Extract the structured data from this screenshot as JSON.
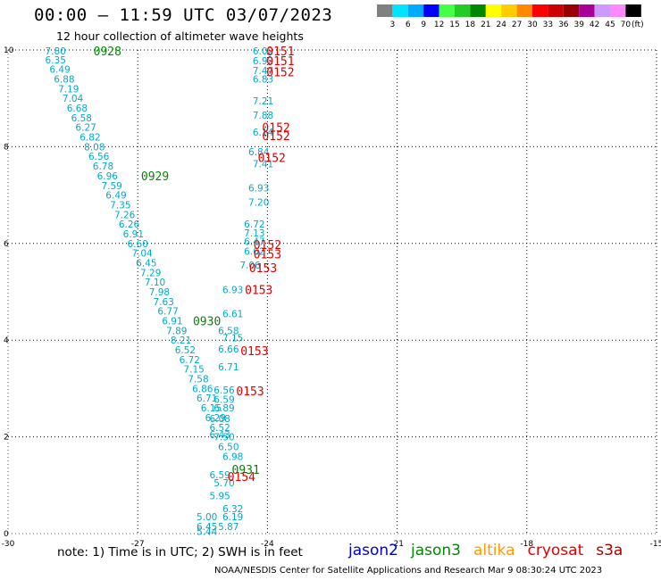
{
  "header": {
    "title": "00:00 – 11:59 UTC 03/07/2023",
    "subtitle": "12 hour collection of altimeter wave heights"
  },
  "legend": {
    "colors": [
      "#808080",
      "#00e5ff",
      "#00aaff",
      "#0000ff",
      "#44ff44",
      "#22cc22",
      "#008800",
      "#ffff00",
      "#ffcc00",
      "#ff8800",
      "#ff0000",
      "#cc0000",
      "#990000",
      "#aa0099",
      "#cc99ff",
      "#ff88ff",
      "#000000"
    ],
    "ticks": [
      "3",
      "6",
      "9",
      "12",
      "15",
      "18",
      "21",
      "24",
      "27",
      "30",
      "33",
      "36",
      "39",
      "42",
      "45",
      "70",
      "(ft)"
    ]
  },
  "footer": {
    "note": "note:  1) Time is in UTC;  2) SWH is in feet",
    "satellites": [
      {
        "name": "jason2",
        "color": "#0000cc"
      },
      {
        "name": "jason3",
        "color": "#008800"
      },
      {
        "name": "altika",
        "color": "#ff9900"
      },
      {
        "name": "cryosat",
        "color": "#dd0000"
      },
      {
        "name": "s3a",
        "color": "#aa0000"
      }
    ],
    "credit": "NOAA/NESDIS Center for Satellite Applications and Research    Mar  9 08:30:24 UTC 2023"
  },
  "chart_data": {
    "type": "scatter",
    "title": "12 hour collection of altimeter wave heights",
    "xlim": [
      -30,
      -15
    ],
    "ylim": [
      0,
      10
    ],
    "xticks": [
      "-30",
      "-27",
      "-24",
      "-21",
      "-18",
      "-15"
    ],
    "yticks": [
      "0",
      "2",
      "4",
      "6",
      "8",
      "10"
    ],
    "grid": true,
    "series": [
      {
        "name": "jason3",
        "color": "#00aacc",
        "points": [
          {
            "x": -28.9,
            "y": 9.98,
            "label": "7.80"
          },
          {
            "x": -28.9,
            "y": 9.8,
            "label": "6.35"
          },
          {
            "x": -28.8,
            "y": 9.6,
            "label": "6.49"
          },
          {
            "x": -28.7,
            "y": 9.4,
            "label": "6.88"
          },
          {
            "x": -28.6,
            "y": 9.2,
            "label": "7.19"
          },
          {
            "x": -28.5,
            "y": 9.0,
            "label": "7.04"
          },
          {
            "x": -28.4,
            "y": 8.8,
            "label": "6.68"
          },
          {
            "x": -28.3,
            "y": 8.6,
            "label": "6.58"
          },
          {
            "x": -28.2,
            "y": 8.4,
            "label": "6.27"
          },
          {
            "x": -28.1,
            "y": 8.2,
            "label": "6.82"
          },
          {
            "x": -28.0,
            "y": 8.0,
            "label": "8.08"
          },
          {
            "x": -27.9,
            "y": 7.8,
            "label": "6.56"
          },
          {
            "x": -27.8,
            "y": 7.6,
            "label": "6.78"
          },
          {
            "x": -27.7,
            "y": 7.4,
            "label": "6.96"
          },
          {
            "x": -27.6,
            "y": 7.2,
            "label": "7.59"
          },
          {
            "x": -27.5,
            "y": 7.0,
            "label": "6.49"
          },
          {
            "x": -27.4,
            "y": 6.8,
            "label": "7.35"
          },
          {
            "x": -27.3,
            "y": 6.6,
            "label": "7.26"
          },
          {
            "x": -27.2,
            "y": 6.4,
            "label": "6.26"
          },
          {
            "x": -27.1,
            "y": 6.2,
            "label": "6.91"
          },
          {
            "x": -27.0,
            "y": 6.0,
            "label": "6.60"
          },
          {
            "x": -26.9,
            "y": 5.8,
            "label": "7.04"
          },
          {
            "x": -26.8,
            "y": 5.6,
            "label": "6.45"
          },
          {
            "x": -26.7,
            "y": 5.4,
            "label": "7.29"
          },
          {
            "x": -26.6,
            "y": 5.2,
            "label": "7.10"
          },
          {
            "x": -26.5,
            "y": 5.0,
            "label": "7.98"
          },
          {
            "x": -26.4,
            "y": 4.8,
            "label": "7.63"
          },
          {
            "x": -26.3,
            "y": 4.6,
            "label": "6.77"
          },
          {
            "x": -26.2,
            "y": 4.4,
            "label": "6.91"
          },
          {
            "x": -26.1,
            "y": 4.2,
            "label": "7.89"
          },
          {
            "x": -26.0,
            "y": 4.0,
            "label": "8.21"
          },
          {
            "x": -25.9,
            "y": 3.8,
            "label": "6.52"
          },
          {
            "x": -25.8,
            "y": 3.6,
            "label": "6.72"
          },
          {
            "x": -25.7,
            "y": 3.4,
            "label": "7.15"
          },
          {
            "x": -25.6,
            "y": 3.2,
            "label": "7.58"
          },
          {
            "x": -25.5,
            "y": 3.0,
            "label": "6.86"
          },
          {
            "x": -25.4,
            "y": 2.8,
            "label": "6.71"
          },
          {
            "x": -25.3,
            "y": 2.6,
            "label": "6.15"
          },
          {
            "x": -25.2,
            "y": 2.4,
            "label": "6.29"
          },
          {
            "x": -25.1,
            "y": 2.2,
            "label": "6.52"
          },
          {
            "x": -25.0,
            "y": 2.0,
            "label": "7.50"
          },
          {
            "x": -24.9,
            "y": 1.8,
            "label": "6.50"
          },
          {
            "x": -24.8,
            "y": 1.6,
            "label": "6.98"
          }
        ]
      },
      {
        "name": "cryosat",
        "color": "#00aacc",
        "points": [
          {
            "x": -24.1,
            "y": 9.98,
            "label": "6.02"
          },
          {
            "x": -24.1,
            "y": 9.78,
            "label": "6.92"
          },
          {
            "x": -24.1,
            "y": 9.58,
            "label": "7.47"
          },
          {
            "x": -24.1,
            "y": 9.4,
            "label": "6.83"
          },
          {
            "x": -24.1,
            "y": 8.95,
            "label": "7.21"
          },
          {
            "x": -24.1,
            "y": 8.65,
            "label": "7.88"
          },
          {
            "x": -24.1,
            "y": 8.3,
            "label": "6.14"
          },
          {
            "x": -24.2,
            "y": 7.9,
            "label": "6.84"
          },
          {
            "x": -24.1,
            "y": 7.65,
            "label": "7.41"
          },
          {
            "x": -24.2,
            "y": 7.15,
            "label": "6.93"
          },
          {
            "x": -24.2,
            "y": 6.85,
            "label": "7.20"
          },
          {
            "x": -24.3,
            "y": 6.4,
            "label": "6.72"
          },
          {
            "x": -24.3,
            "y": 6.22,
            "label": "7.13"
          },
          {
            "x": -24.3,
            "y": 6.04,
            "label": "6.47"
          },
          {
            "x": -24.3,
            "y": 5.84,
            "label": "6.62"
          },
          {
            "x": -24.4,
            "y": 5.55,
            "label": "7.06"
          },
          {
            "x": -24.8,
            "y": 5.05,
            "label": "6.93"
          },
          {
            "x": -24.8,
            "y": 4.55,
            "label": "6.61"
          },
          {
            "x": -24.9,
            "y": 4.2,
            "label": "6.58"
          },
          {
            "x": -24.8,
            "y": 4.05,
            "label": "7.15"
          },
          {
            "x": -24.9,
            "y": 3.82,
            "label": "6.66"
          },
          {
            "x": -24.9,
            "y": 3.45,
            "label": "6.71"
          },
          {
            "x": -25.0,
            "y": 2.97,
            "label": "6.56"
          },
          {
            "x": -25.0,
            "y": 2.78,
            "label": "6.59"
          },
          {
            "x": -25.0,
            "y": 2.6,
            "label": "6.89"
          },
          {
            "x": -25.1,
            "y": 2.38,
            "label": "6.08"
          },
          {
            "x": -25.1,
            "y": 2.05,
            "label": "6.43"
          },
          {
            "x": -25.1,
            "y": 1.22,
            "label": "6.59"
          },
          {
            "x": -25.0,
            "y": 1.05,
            "label": "5.70"
          },
          {
            "x": -25.1,
            "y": 0.78,
            "label": "5.95"
          },
          {
            "x": -24.8,
            "y": 0.52,
            "label": "6.32"
          },
          {
            "x": -25.4,
            "y": 0.35,
            "label": "5.00"
          },
          {
            "x": -24.8,
            "y": 0.35,
            "label": "6.19"
          },
          {
            "x": -25.4,
            "y": 0.15,
            "label": "6.45"
          },
          {
            "x": -24.9,
            "y": 0.15,
            "label": "5.87"
          },
          {
            "x": -25.4,
            "y": 0.05,
            "label": "5.44"
          }
        ]
      }
    ],
    "time_labels": [
      {
        "x": -27.7,
        "y": 9.98,
        "text": "0928",
        "color": "#008800"
      },
      {
        "x": -26.6,
        "y": 7.4,
        "text": "0929",
        "color": "#008800"
      },
      {
        "x": -25.4,
        "y": 4.4,
        "text": "0930",
        "color": "#008800"
      },
      {
        "x": -24.5,
        "y": 1.33,
        "text": "0931",
        "color": "#008800"
      },
      {
        "x": -23.7,
        "y": 9.98,
        "text": "0151",
        "color": "#dd0000"
      },
      {
        "x": -23.7,
        "y": 9.78,
        "text": "0151",
        "color": "#dd0000"
      },
      {
        "x": -23.7,
        "y": 9.55,
        "text": "0152",
        "color": "#dd0000"
      },
      {
        "x": -23.8,
        "y": 8.4,
        "text": "0152",
        "color": "#dd0000"
      },
      {
        "x": -23.8,
        "y": 8.23,
        "text": "0152",
        "color": "#dd0000"
      },
      {
        "x": -23.9,
        "y": 7.78,
        "text": "0152",
        "color": "#dd0000"
      },
      {
        "x": -24.0,
        "y": 5.98,
        "text": "0152",
        "color": "#dd0000"
      },
      {
        "x": -24.0,
        "y": 5.78,
        "text": "0153",
        "color": "#dd0000"
      },
      {
        "x": -24.1,
        "y": 5.5,
        "text": "0153",
        "color": "#dd0000"
      },
      {
        "x": -24.2,
        "y": 5.05,
        "text": "0153",
        "color": "#dd0000"
      },
      {
        "x": -24.3,
        "y": 3.78,
        "text": "0153",
        "color": "#dd0000"
      },
      {
        "x": -24.4,
        "y": 2.95,
        "text": "0153",
        "color": "#dd0000"
      },
      {
        "x": -24.6,
        "y": 1.18,
        "text": "0154",
        "color": "#dd0000"
      }
    ]
  }
}
